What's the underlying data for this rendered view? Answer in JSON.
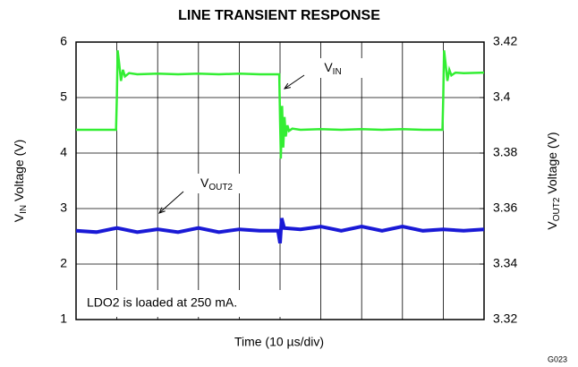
{
  "chart_data": {
    "type": "line",
    "title": "LINE TRANSIENT RESPONSE",
    "ylabel": {
      "prefix": "V",
      "sub": "IN",
      "suffix": " Voltage (V)"
    },
    "y2label": {
      "prefix": "V",
      "sub": "OUT2",
      "suffix": " Voltage (V)"
    },
    "xlabel": "Time (10 µs/div)",
    "xlim": [
      0,
      10
    ],
    "xticks": [
      0,
      1,
      2,
      3,
      4,
      5,
      6,
      7,
      8,
      9,
      10
    ],
    "ylim": [
      1,
      6
    ],
    "yticks": [
      1,
      2,
      3,
      4,
      5,
      6
    ],
    "y2lim": [
      3.32,
      3.42
    ],
    "y2ticks": [
      3.32,
      3.34,
      3.36,
      3.38,
      3.4,
      3.42
    ],
    "grid": true,
    "series": [
      {
        "name": {
          "prefix": "V",
          "sub": "IN"
        },
        "color": "#33ee33",
        "axis": "y",
        "x": [
          0,
          0.98,
          1.0,
          1.02,
          1.06,
          1.1,
          1.15,
          1.2,
          1.3,
          1.5,
          2,
          2.5,
          3,
          3.5,
          4,
          4.5,
          4.98,
          5.0,
          5.02,
          5.05,
          5.08,
          5.11,
          5.14,
          5.18,
          5.22,
          5.3,
          5.5,
          6,
          6.5,
          7,
          7.5,
          8,
          8.5,
          8.98,
          9.0,
          9.02,
          9.06,
          9.1,
          9.15,
          9.2,
          9.3,
          9.5,
          10
        ],
        "values": [
          4.42,
          4.42,
          5.0,
          5.85,
          5.6,
          5.3,
          5.5,
          5.38,
          5.44,
          5.42,
          5.43,
          5.42,
          5.43,
          5.42,
          5.43,
          5.42,
          5.42,
          4.6,
          3.9,
          4.85,
          4.1,
          4.65,
          4.3,
          4.5,
          4.4,
          4.44,
          4.42,
          4.43,
          4.42,
          4.43,
          4.42,
          4.43,
          4.42,
          4.42,
          5.0,
          5.85,
          5.6,
          5.3,
          5.5,
          5.4,
          5.45,
          5.44,
          5.45
        ]
      },
      {
        "name": {
          "prefix": "V",
          "sub": "OUT2"
        },
        "color": "#1a1ad6",
        "axis": "y2",
        "x": [
          0,
          0.5,
          1,
          1.5,
          2,
          2.5,
          3,
          3.5,
          4,
          4.5,
          4.95,
          5.0,
          5.04,
          5.1,
          5.5,
          6,
          6.5,
          7,
          7.5,
          8,
          8.5,
          9,
          9.5,
          10
        ],
        "values": [
          3.352,
          3.3515,
          3.353,
          3.3515,
          3.3525,
          3.3515,
          3.353,
          3.3515,
          3.3525,
          3.352,
          3.352,
          3.3475,
          3.3565,
          3.353,
          3.3525,
          3.3535,
          3.352,
          3.3535,
          3.352,
          3.3535,
          3.352,
          3.3525,
          3.352,
          3.3525
        ]
      }
    ],
    "annotations": [
      "LDO2 is loaded at 250 mA.",
      "G023"
    ]
  }
}
